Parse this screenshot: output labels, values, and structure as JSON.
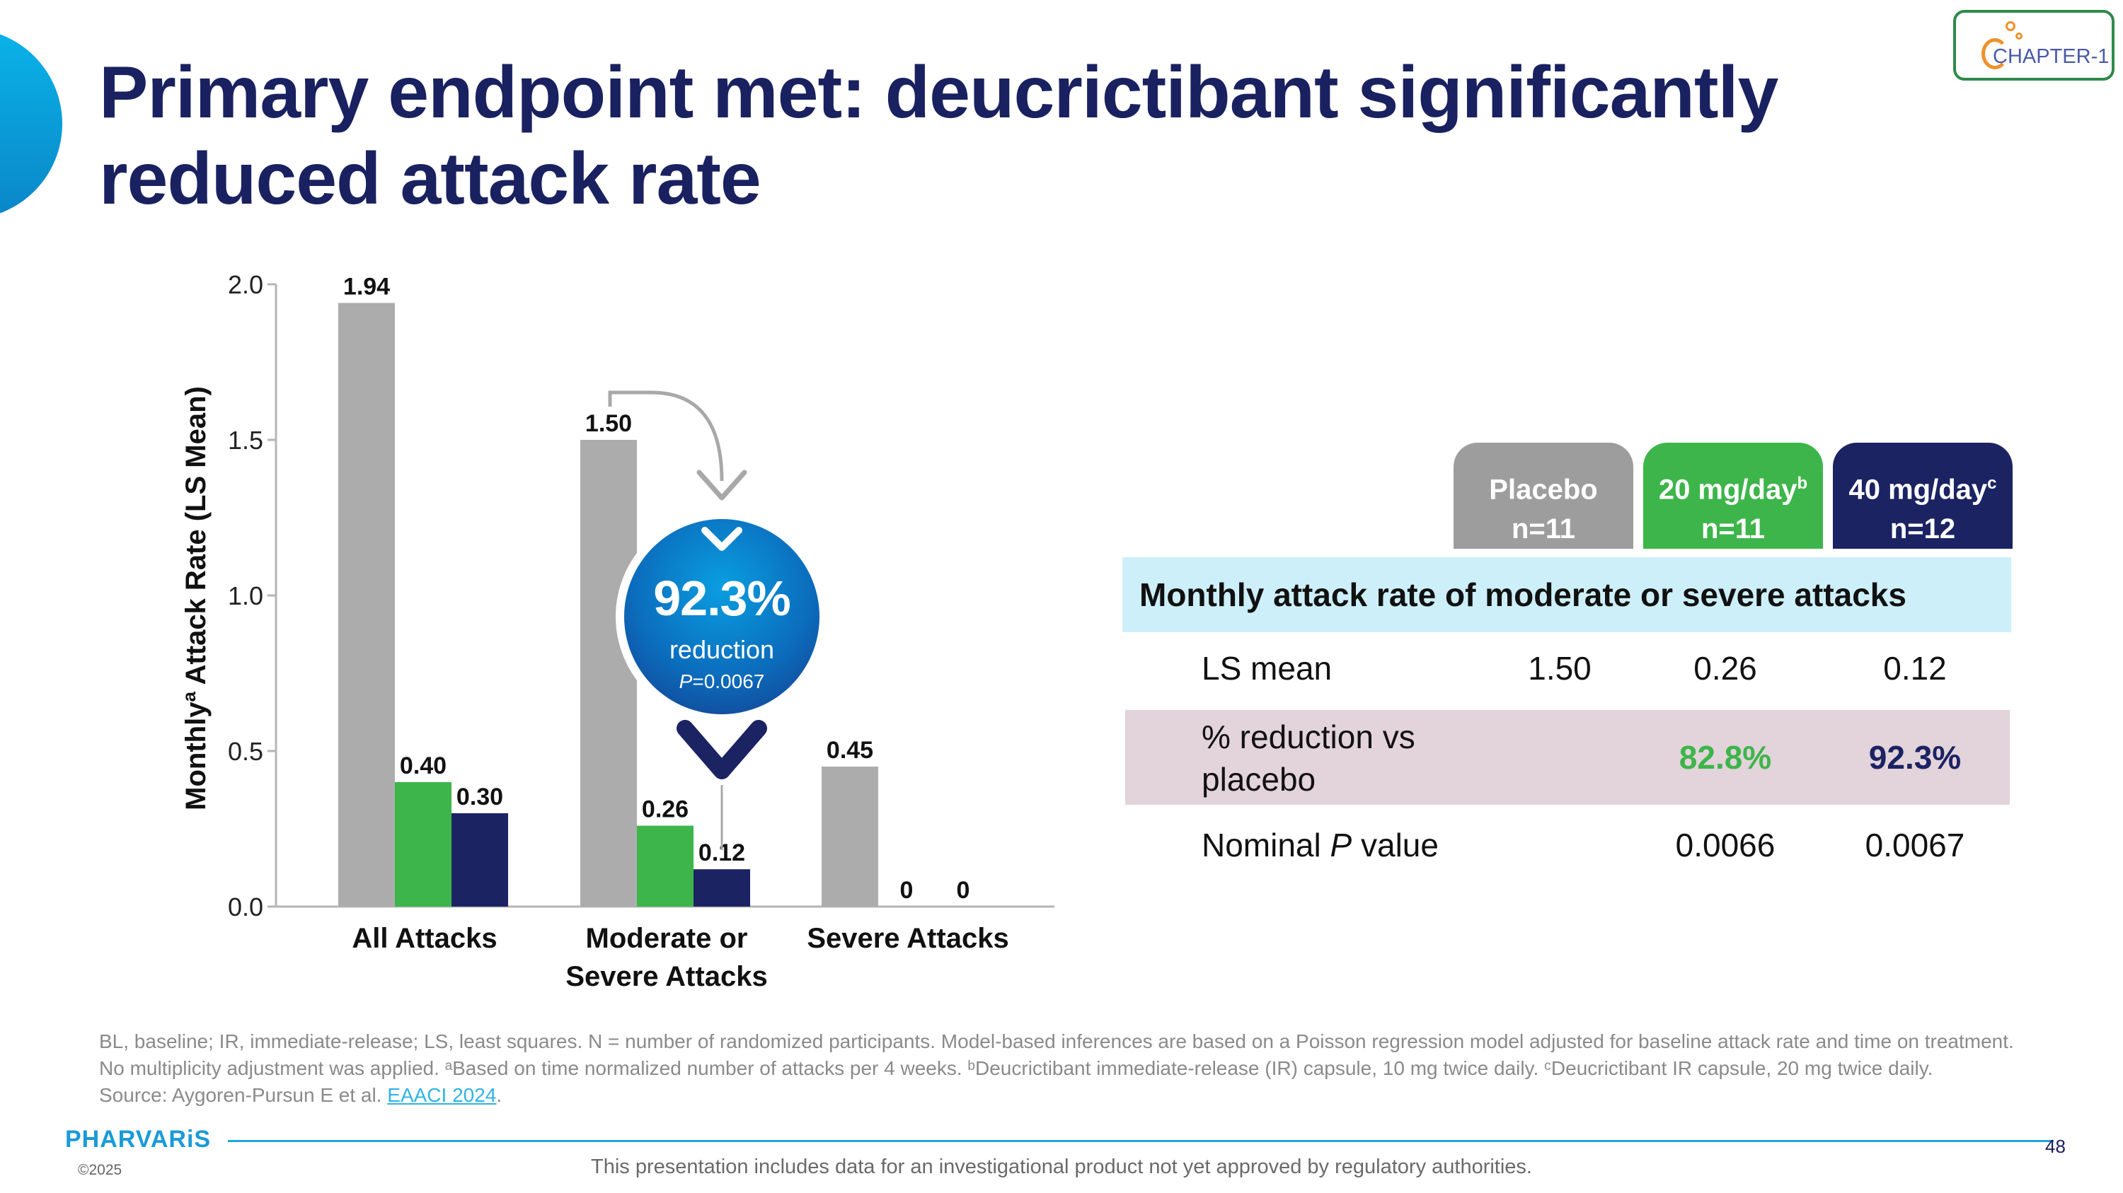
{
  "title": "Primary endpoint met: deucrictibant significantly reduced attack rate",
  "badge": "CHAPTER-1",
  "chart_data": {
    "type": "bar",
    "ylabel": "Monthly",
    "ylabel_sup": "a",
    "ylabel_rest": " Attack Rate (LS Mean)",
    "ylim": [
      0,
      2.0
    ],
    "yticks": [
      "0.0",
      "0.5",
      "1.0",
      "1.5",
      "2.0"
    ],
    "categories": [
      [
        "All Attacks"
      ],
      [
        "Moderate or",
        "Severe Attacks"
      ],
      [
        "Severe Attacks"
      ]
    ],
    "series": [
      {
        "key": "placebo",
        "color": "#acacac",
        "values": [
          1.94,
          1.5,
          0.45
        ],
        "labels": [
          "1.94",
          "1.50",
          "0.45"
        ]
      },
      {
        "key": "20mg",
        "color": "#3db54a",
        "values": [
          0.4,
          0.26,
          0
        ],
        "labels": [
          "0.40",
          "0.26",
          "0"
        ]
      },
      {
        "key": "40mg",
        "color": "#1b2363",
        "values": [
          0.3,
          0.12,
          0
        ],
        "labels": [
          "0.30",
          "0.12",
          "0"
        ]
      }
    ],
    "grid": false
  },
  "callout": {
    "value": "92.3%",
    "label": "reduction",
    "p_prefix": "P",
    "p_value": "=0.0067"
  },
  "table": {
    "columns": [
      {
        "line1": "Placebo",
        "sup": "",
        "line2": "n=11",
        "color": "#9d9d9d"
      },
      {
        "line1": "20 mg/day",
        "sup": "b",
        "line2": "n=11",
        "color": "#3db54a"
      },
      {
        "line1": "40 mg/day",
        "sup": "c",
        "line2": "n=12",
        "color": "#1b2363"
      }
    ],
    "section": "Monthly attack rate of moderate or severe attacks",
    "rows": {
      "ls_mean": {
        "label": "LS mean",
        "values": [
          "1.50",
          "0.26",
          "0.12"
        ]
      },
      "reduction": {
        "label_1": "% reduction vs",
        "label_2": "placebo",
        "values": [
          "",
          "82.8%",
          "92.3%"
        ],
        "colors": [
          "#111111",
          "#3db54a",
          "#1b2363"
        ]
      },
      "pvalue": {
        "label_1": "Nominal ",
        "label_p": "P",
        "label_2": " value",
        "values": [
          "",
          "0.0066",
          "0.0067"
        ]
      }
    }
  },
  "footnotes": {
    "line1": "BL, baseline; IR, immediate-release; LS, least squares. N = number of randomized participants. Model-based inferences are based on a Poisson regression model adjusted for baseline attack rate and time on treatment.",
    "line2": "No multiplicity adjustment was applied. ᵃBased on time normalized number of attacks per 4 weeks. ᵇDeucrictibant immediate-release (IR) capsule, 10 mg twice daily. ᶜDeucrictibant IR capsule, 20 mg twice daily.",
    "source_prefix": "Source: Aygoren-Pursun E et al. ",
    "source_link": "EAACI 2024",
    "source_suffix": "."
  },
  "footer": {
    "logo": "PHARVARiS",
    "copyright": "©2025",
    "disclaimer": "This presentation includes data for an investigational product not yet approved by regulatory authorities.",
    "page": "48"
  }
}
